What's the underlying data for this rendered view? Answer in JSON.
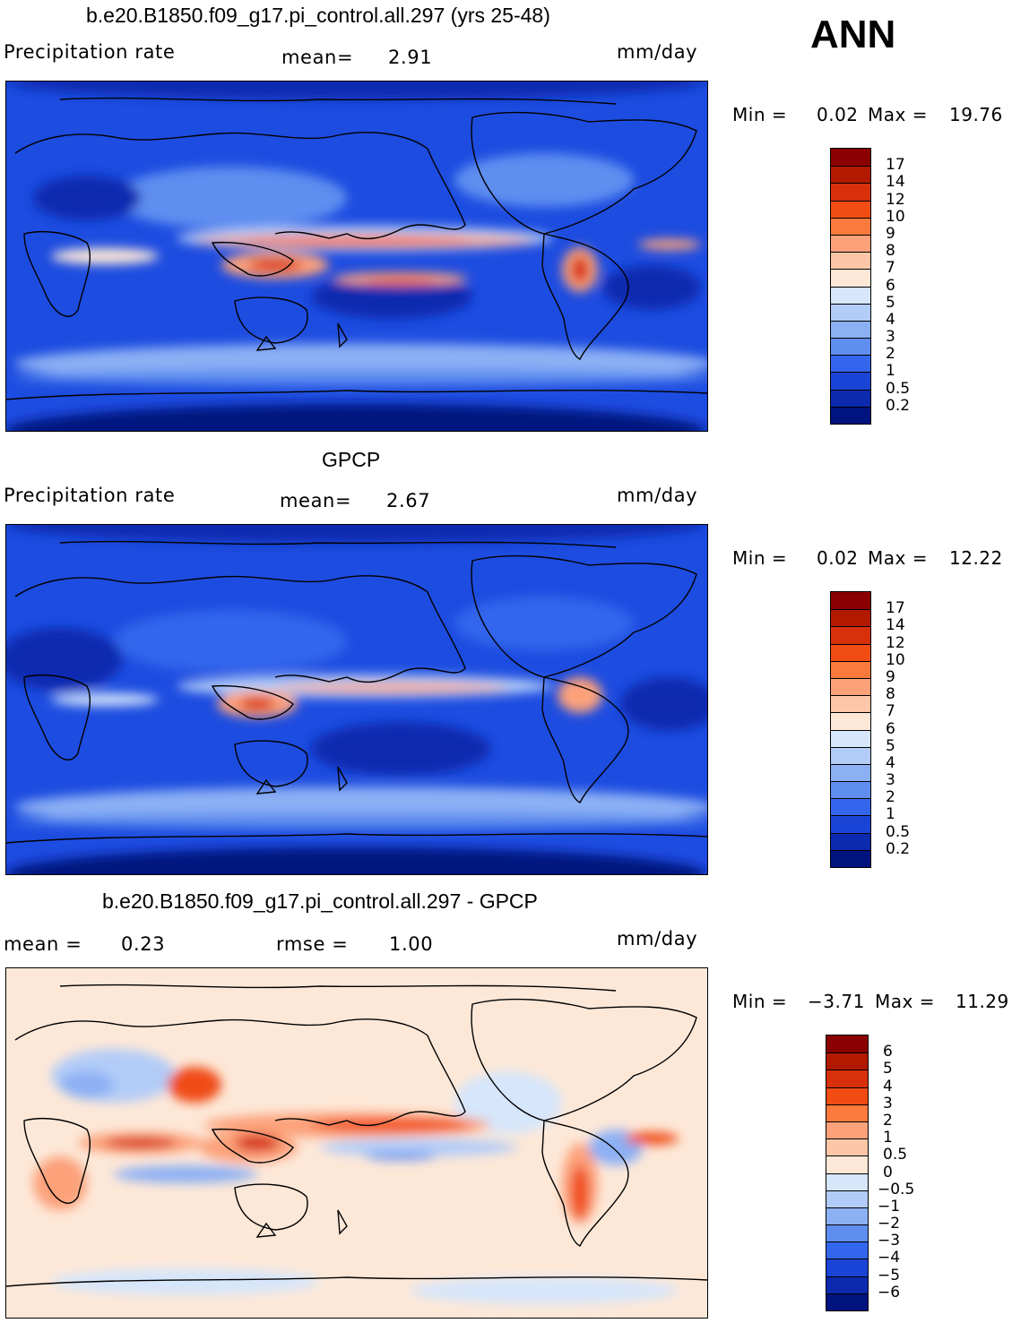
{
  "season": "ANN",
  "panels": [
    {
      "id": "model",
      "title": "b.e20.B1850.f09_g17.pi_control.all.297 (yrs 25-48)",
      "left_label": "Precipitation rate",
      "mid_label": "mean=",
      "mid_value": "2.91",
      "units": "mm/day",
      "min_label": "Min =",
      "min_value": "0.02",
      "max_label": "Max =",
      "max_value": "19.76",
      "colorbar_labels": [
        "17",
        "14",
        "12",
        "10",
        "9",
        "8",
        "7",
        "6",
        "5",
        "4",
        "3",
        "2",
        "1",
        "0.5",
        "0.2"
      ],
      "colorbar_colors": [
        "#8b0000",
        "#b21a00",
        "#d7300a",
        "#f04c14",
        "#fb7a3c",
        "#fca17a",
        "#fdc7a7",
        "#fde8d8",
        "#d6e6fb",
        "#b2ccf8",
        "#8cb0f4",
        "#5f8ef0",
        "#3366ec",
        "#1a44d6",
        "#0b2ab0",
        "#00137f"
      ],
      "map_style": "model"
    },
    {
      "id": "obs",
      "title": "GPCP",
      "left_label": "Precipitation rate",
      "mid_label": "mean=",
      "mid_value": "2.67",
      "units": "mm/day",
      "min_label": "Min =",
      "min_value": "0.02",
      "max_label": "Max =",
      "max_value": "12.22",
      "colorbar_labels": [
        "17",
        "14",
        "12",
        "10",
        "9",
        "8",
        "7",
        "6",
        "5",
        "4",
        "3",
        "2",
        "1",
        "0.5",
        "0.2"
      ],
      "colorbar_colors": [
        "#8b0000",
        "#b21a00",
        "#d7300a",
        "#f04c14",
        "#fb7a3c",
        "#fca17a",
        "#fdc7a7",
        "#fde8d8",
        "#d6e6fb",
        "#b2ccf8",
        "#8cb0f4",
        "#5f8ef0",
        "#3366ec",
        "#1a44d6",
        "#0b2ab0",
        "#00137f"
      ],
      "map_style": "obs"
    },
    {
      "id": "diff",
      "title": "b.e20.B1850.f09_g17.pi_control.all.297 - GPCP",
      "left_label": "mean =",
      "left_value": "0.23",
      "mid_label": "rmse =",
      "mid_value": "1.00",
      "units": "mm/day",
      "min_label": "Min =",
      "min_value": "−3.71",
      "max_label": "Max =",
      "max_value": "11.29",
      "colorbar_labels": [
        "6",
        "5",
        "4",
        "3",
        "2",
        "1",
        "0.5",
        "0",
        "−0.5",
        "−1",
        "−2",
        "−3",
        "−4",
        "−5",
        "−6"
      ],
      "colorbar_colors": [
        "#8b0000",
        "#b21a00",
        "#d7300a",
        "#f04c14",
        "#fb7a3c",
        "#fca17a",
        "#fdc7a7",
        "#fde8d8",
        "#d6e6fb",
        "#b2ccf8",
        "#8cb0f4",
        "#5f8ef0",
        "#3366ec",
        "#1a44d6",
        "#0b2ab0",
        "#00137f"
      ],
      "map_style": "diff"
    }
  ]
}
